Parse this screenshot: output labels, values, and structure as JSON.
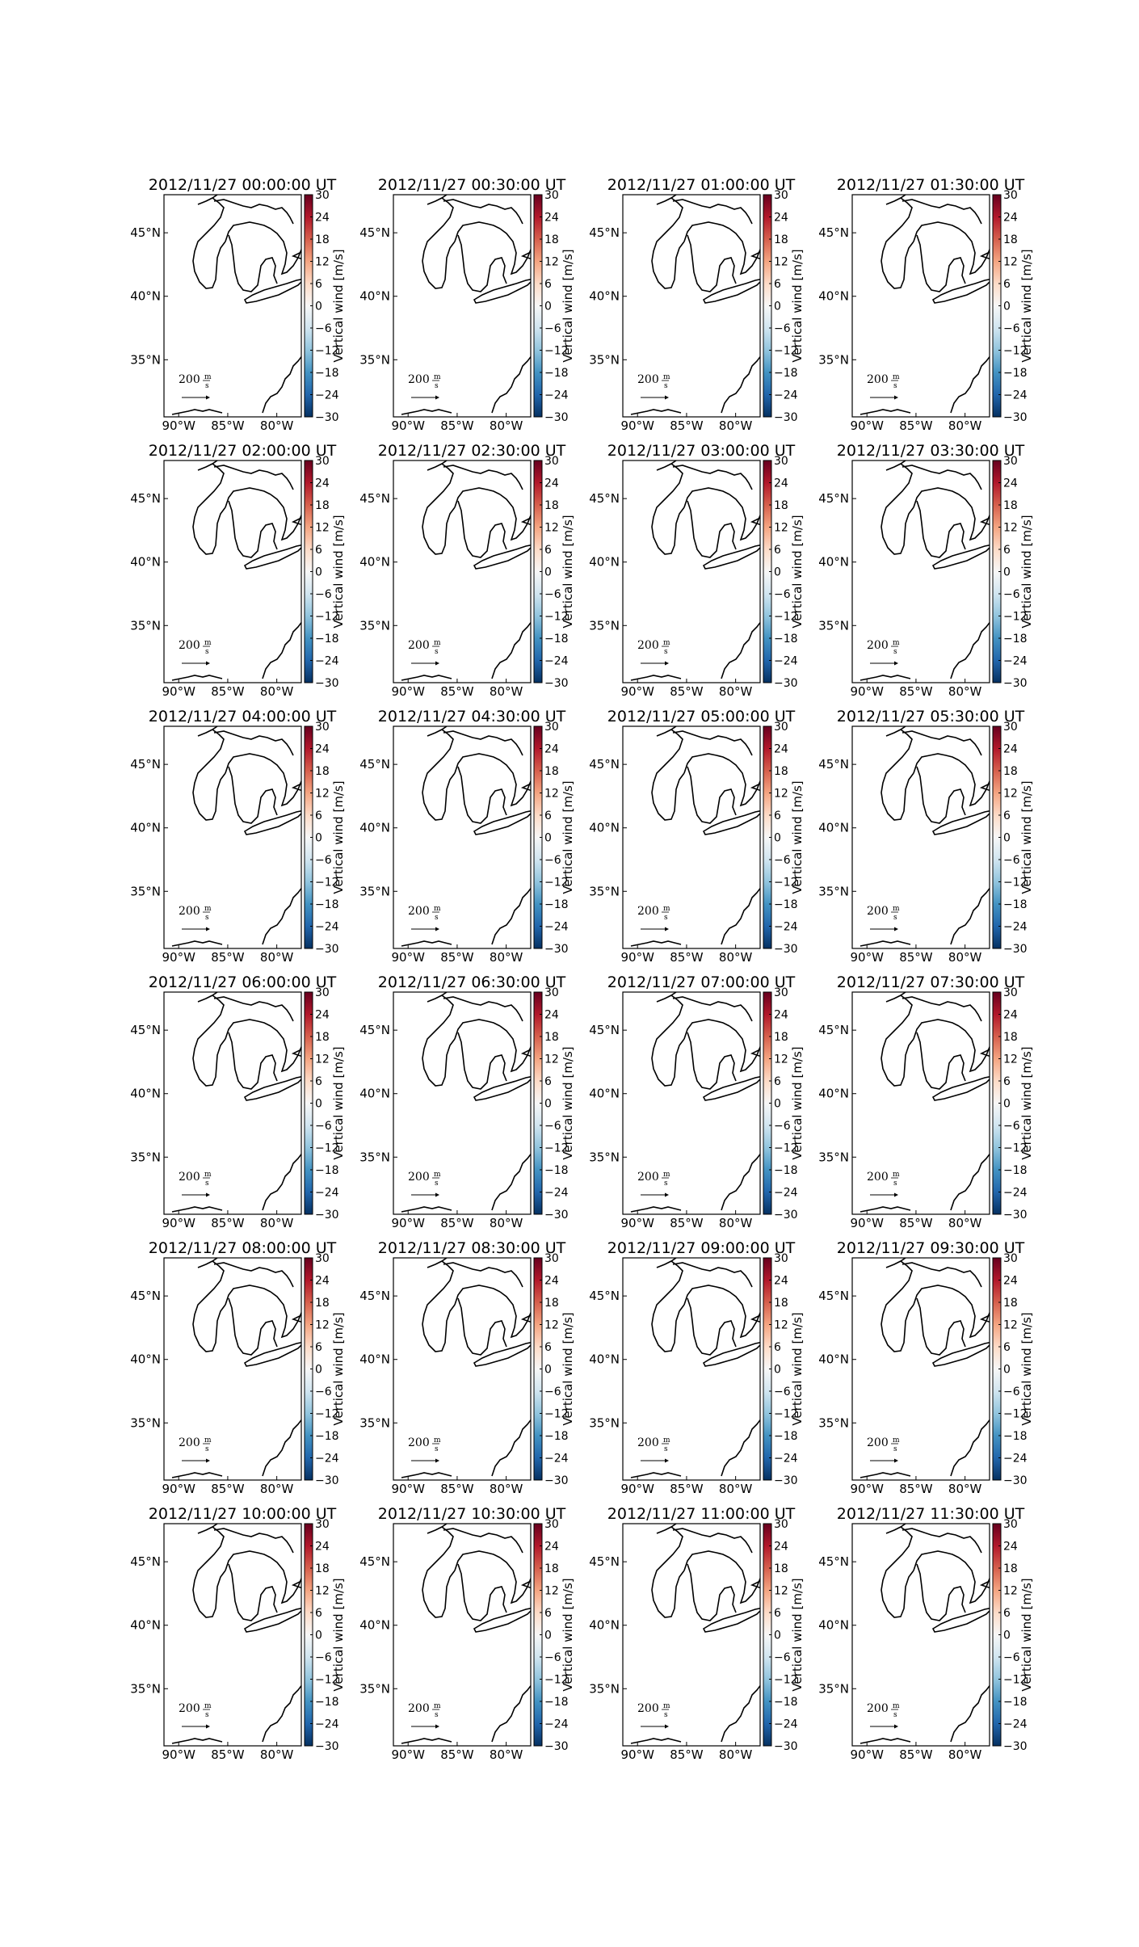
{
  "chart_data": {
    "type": "map-grid",
    "panels": [
      {
        "title": "2012/11/27 00:00:00 UT"
      },
      {
        "title": "2012/11/27 00:30:00 UT"
      },
      {
        "title": "2012/11/27 01:00:00 UT"
      },
      {
        "title": "2012/11/27 01:30:00 UT"
      },
      {
        "title": "2012/11/27 02:00:00 UT"
      },
      {
        "title": "2012/11/27 02:30:00 UT"
      },
      {
        "title": "2012/11/27 03:00:00 UT"
      },
      {
        "title": "2012/11/27 03:30:00 UT"
      },
      {
        "title": "2012/11/27 04:00:00 UT"
      },
      {
        "title": "2012/11/27 04:30:00 UT"
      },
      {
        "title": "2012/11/27 05:00:00 UT"
      },
      {
        "title": "2012/11/27 05:30:00 UT"
      },
      {
        "title": "2012/11/27 06:00:00 UT"
      },
      {
        "title": "2012/11/27 06:30:00 UT"
      },
      {
        "title": "2012/11/27 07:00:00 UT"
      },
      {
        "title": "2012/11/27 07:30:00 UT"
      },
      {
        "title": "2012/11/27 08:00:00 UT"
      },
      {
        "title": "2012/11/27 08:30:00 UT"
      },
      {
        "title": "2012/11/27 09:00:00 UT"
      },
      {
        "title": "2012/11/27 09:30:00 UT"
      },
      {
        "title": "2012/11/27 10:00:00 UT"
      },
      {
        "title": "2012/11/27 10:30:00 UT"
      },
      {
        "title": "2012/11/27 11:00:00 UT"
      },
      {
        "title": "2012/11/27 11:30:00 UT"
      }
    ],
    "lon_range": [
      -91.5,
      -77.5
    ],
    "lat_range": [
      30.5,
      48
    ],
    "x_ticks": [
      {
        "value": -90,
        "label": "90°W"
      },
      {
        "value": -85,
        "label": "85°W"
      },
      {
        "value": -80,
        "label": "80°W"
      }
    ],
    "y_ticks": [
      {
        "value": 45,
        "label": "45°N"
      },
      {
        "value": 40,
        "label": "40°N"
      },
      {
        "value": 35,
        "label": "35°N"
      }
    ],
    "colorbar": {
      "label": "Vertical wind [m/s]",
      "range": [
        -30,
        30
      ],
      "ticks": [
        30,
        24,
        18,
        12,
        6,
        0,
        -6,
        -12,
        -18,
        -24,
        -30
      ],
      "tick_labels": [
        "30",
        "24",
        "18",
        "12",
        "6",
        "0",
        "−6",
        "−12",
        "−18",
        "−24",
        "−30"
      ],
      "colormap": "RdBu_r",
      "colors": [
        "#053061",
        "#2166ac",
        "#4393c3",
        "#92c5de",
        "#d1e5f0",
        "#f7f7f7",
        "#fddbc7",
        "#f4a582",
        "#d6604d",
        "#b2182b",
        "#67001f"
      ]
    },
    "vector_scale": {
      "value": "200",
      "unit_numerator": "m",
      "unit_denominator": "s"
    },
    "grid": false
  }
}
